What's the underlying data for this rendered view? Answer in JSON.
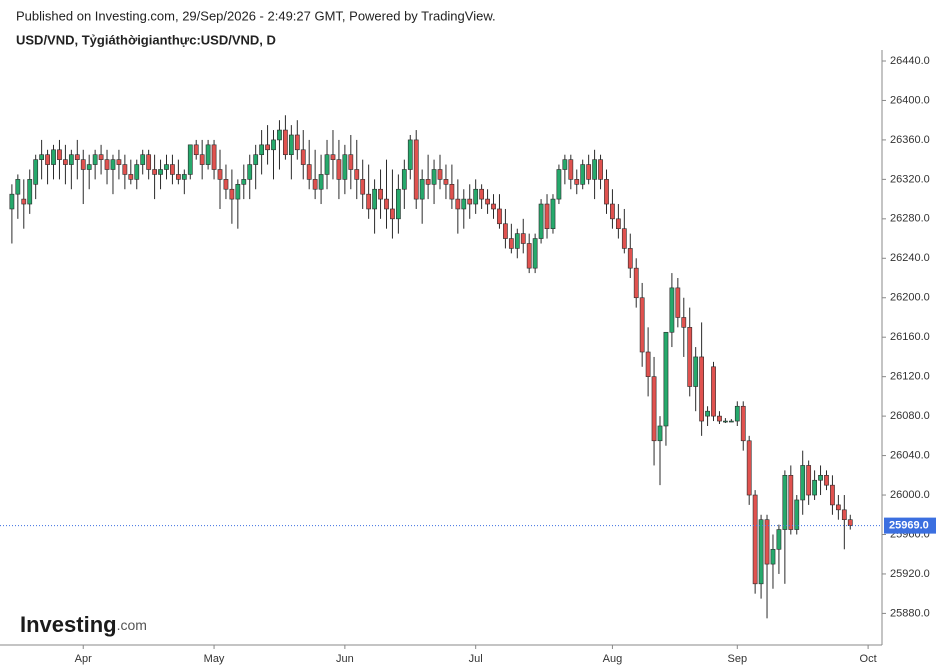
{
  "header": {
    "published": "Published on Investing.com, 29/Sep/2026 - 2:49:27 GMT, Powered by TradingView.",
    "symbol": "USD/VND, Tỷgiáthờigianthực:USD/VND, D"
  },
  "logo": {
    "main": "Investing",
    "suffix": ".com"
  },
  "chart_data": {
    "type": "candlestick",
    "up_color": "#26a96c",
    "down_color": "#e0524f",
    "wick_color": "#2a2a2a",
    "xlim": [
      -2,
      146
    ],
    "xticks": [
      {
        "value": 12,
        "label": "Apr"
      },
      {
        "value": 34,
        "label": "May"
      },
      {
        "value": 56,
        "label": "Jun"
      },
      {
        "value": 78,
        "label": "Jul"
      },
      {
        "value": 101,
        "label": "Aug"
      },
      {
        "value": 122,
        "label": "Sep"
      },
      {
        "value": 144,
        "label": "Oct"
      }
    ],
    "ylim": [
      25850,
      26440
    ],
    "yticks": [
      {
        "value": 25880,
        "label": "25880.0"
      },
      {
        "value": 25920,
        "label": "25920.0"
      },
      {
        "value": 25960,
        "label": "25960.0"
      },
      {
        "value": 26000,
        "label": "26000.0"
      },
      {
        "value": 26040,
        "label": "26040.0"
      },
      {
        "value": 26080,
        "label": "26080.0"
      },
      {
        "value": 26120,
        "label": "26120.0"
      },
      {
        "value": 26160,
        "label": "26160.0"
      },
      {
        "value": 26200,
        "label": "26200.0"
      },
      {
        "value": 26240,
        "label": "26240.0"
      },
      {
        "value": 26280,
        "label": "26280.0"
      },
      {
        "value": 26320,
        "label": "26320.0"
      },
      {
        "value": 26360,
        "label": "26360.0"
      },
      {
        "value": 26400,
        "label": "26400.0"
      },
      {
        "value": 26440,
        "label": "26440.0"
      }
    ],
    "last_price": {
      "value": 25969,
      "label": "25969.0",
      "color": "#3b6fe0"
    },
    "ohlc": [
      [
        26290,
        26315,
        26255,
        26305
      ],
      [
        26305,
        26325,
        26280,
        26320
      ],
      [
        26300,
        26320,
        26270,
        26295
      ],
      [
        26295,
        26330,
        26285,
        26320
      ],
      [
        26315,
        26345,
        26300,
        26340
      ],
      [
        26340,
        26360,
        26320,
        26345
      ],
      [
        26345,
        26350,
        26315,
        26335
      ],
      [
        26335,
        26355,
        26320,
        26350
      ],
      [
        26350,
        26360,
        26320,
        26340
      ],
      [
        26340,
        26355,
        26315,
        26335
      ],
      [
        26335,
        26350,
        26310,
        26345
      ],
      [
        26345,
        26360,
        26320,
        26340
      ],
      [
        26340,
        26350,
        26295,
        26330
      ],
      [
        26330,
        26345,
        26310,
        26335
      ],
      [
        26335,
        26350,
        26320,
        26345
      ],
      [
        26345,
        26355,
        26325,
        26340
      ],
      [
        26340,
        26350,
        26315,
        26330
      ],
      [
        26330,
        26345,
        26305,
        26340
      ],
      [
        26340,
        26350,
        26320,
        26335
      ],
      [
        26335,
        26345,
        26310,
        26325
      ],
      [
        26325,
        26340,
        26315,
        26320
      ],
      [
        26320,
        26340,
        26310,
        26335
      ],
      [
        26335,
        26350,
        26325,
        26345
      ],
      [
        26345,
        26350,
        26320,
        26330
      ],
      [
        26330,
        26345,
        26300,
        26325
      ],
      [
        26325,
        26340,
        26310,
        26330
      ],
      [
        26330,
        26345,
        26320,
        26335
      ],
      [
        26335,
        26345,
        26315,
        26325
      ],
      [
        26325,
        26340,
        26315,
        26320
      ],
      [
        26320,
        26330,
        26305,
        26325
      ],
      [
        26325,
        26355,
        26320,
        26355
      ],
      [
        26355,
        26360,
        26340,
        26345
      ],
      [
        26345,
        26360,
        26320,
        26335
      ],
      [
        26335,
        26360,
        26330,
        26355
      ],
      [
        26355,
        26360,
        26320,
        26330
      ],
      [
        26330,
        26350,
        26290,
        26320
      ],
      [
        26320,
        26335,
        26300,
        26310
      ],
      [
        26310,
        26330,
        26275,
        26300
      ],
      [
        26300,
        26320,
        26270,
        26315
      ],
      [
        26315,
        26335,
        26300,
        26320
      ],
      [
        26320,
        26345,
        26300,
        26335
      ],
      [
        26335,
        26355,
        26310,
        26345
      ],
      [
        26345,
        26370,
        26325,
        26355
      ],
      [
        26355,
        26375,
        26335,
        26350
      ],
      [
        26350,
        26370,
        26320,
        26360
      ],
      [
        26360,
        26380,
        26330,
        26370
      ],
      [
        26370,
        26385,
        26340,
        26345
      ],
      [
        26345,
        26375,
        26320,
        26365
      ],
      [
        26365,
        26380,
        26340,
        26350
      ],
      [
        26350,
        26370,
        26320,
        26335
      ],
      [
        26335,
        26360,
        26310,
        26320
      ],
      [
        26320,
        26350,
        26300,
        26310
      ],
      [
        26310,
        26345,
        26295,
        26325
      ],
      [
        26325,
        26360,
        26310,
        26345
      ],
      [
        26345,
        26370,
        26320,
        26340
      ],
      [
        26340,
        26360,
        26300,
        26320
      ],
      [
        26320,
        26355,
        26305,
        26345
      ],
      [
        26345,
        26365,
        26310,
        26330
      ],
      [
        26330,
        26360,
        26300,
        26320
      ],
      [
        26320,
        26340,
        26290,
        26305
      ],
      [
        26305,
        26335,
        26280,
        26290
      ],
      [
        26290,
        26320,
        26265,
        26310
      ],
      [
        26310,
        26330,
        26280,
        26300
      ],
      [
        26300,
        26340,
        26270,
        26290
      ],
      [
        26290,
        26330,
        26260,
        26280
      ],
      [
        26280,
        26325,
        26265,
        26310
      ],
      [
        26310,
        26340,
        26290,
        26330
      ],
      [
        26330,
        26365,
        26320,
        26360
      ],
      [
        26360,
        26370,
        26290,
        26300
      ],
      [
        26300,
        26330,
        26275,
        26320
      ],
      [
        26320,
        26345,
        26300,
        26315
      ],
      [
        26315,
        26340,
        26295,
        26330
      ],
      [
        26330,
        26345,
        26310,
        26320
      ],
      [
        26320,
        26335,
        26300,
        26315
      ],
      [
        26315,
        26335,
        26290,
        26300
      ],
      [
        26300,
        26320,
        26265,
        26290
      ],
      [
        26290,
        26310,
        26270,
        26300
      ],
      [
        26300,
        26315,
        26280,
        26295
      ],
      [
        26295,
        26320,
        26285,
        26310
      ],
      [
        26310,
        26315,
        26290,
        26300
      ],
      [
        26300,
        26310,
        26285,
        26295
      ],
      [
        26295,
        26305,
        26280,
        26290
      ],
      [
        26290,
        26305,
        26270,
        26275
      ],
      [
        26275,
        26290,
        26250,
        26260
      ],
      [
        26260,
        26275,
        26245,
        26250
      ],
      [
        26250,
        26270,
        26240,
        26265
      ],
      [
        26265,
        26280,
        26245,
        26255
      ],
      [
        26255,
        26265,
        26225,
        26230
      ],
      [
        26230,
        26265,
        26225,
        26260
      ],
      [
        26260,
        26300,
        26255,
        26295
      ],
      [
        26295,
        26305,
        26260,
        26270
      ],
      [
        26270,
        26305,
        26265,
        26300
      ],
      [
        26300,
        26335,
        26295,
        26330
      ],
      [
        26330,
        26345,
        26315,
        26340
      ],
      [
        26340,
        26345,
        26310,
        26320
      ],
      [
        26320,
        26330,
        26305,
        26315
      ],
      [
        26315,
        26340,
        26310,
        26335
      ],
      [
        26335,
        26345,
        26315,
        26320
      ],
      [
        26320,
        26350,
        26300,
        26340
      ],
      [
        26340,
        26345,
        26310,
        26320
      ],
      [
        26320,
        26330,
        26285,
        26295
      ],
      [
        26295,
        26310,
        26270,
        26280
      ],
      [
        26280,
        26295,
        26260,
        26270
      ],
      [
        26270,
        26290,
        26245,
        26250
      ],
      [
        26250,
        26265,
        26220,
        26230
      ],
      [
        26230,
        26240,
        26190,
        26200
      ],
      [
        26200,
        26215,
        26130,
        26145
      ],
      [
        26145,
        26170,
        26100,
        26120
      ],
      [
        26120,
        26140,
        26030,
        26055
      ],
      [
        26055,
        26080,
        26010,
        26070
      ],
      [
        26070,
        26165,
        26050,
        26165
      ],
      [
        26165,
        26225,
        26150,
        26210
      ],
      [
        26210,
        26220,
        26170,
        26180
      ],
      [
        26180,
        26200,
        26140,
        26170
      ],
      [
        26170,
        26190,
        26100,
        26110
      ],
      [
        26110,
        26150,
        26085,
        26140
      ],
      [
        26140,
        26175,
        26060,
        26075
      ],
      [
        26080,
        26090,
        26070,
        26085
      ],
      [
        26130,
        26135,
        26075,
        26080
      ],
      [
        26080,
        26085,
        26072,
        26075
      ],
      [
        26075,
        26078,
        26073,
        26075
      ],
      [
        26075,
        26077,
        26074,
        26075
      ],
      [
        26075,
        26095,
        26070,
        26090
      ],
      [
        26090,
        26095,
        26045,
        26055
      ],
      [
        26055,
        26060,
        25990,
        26000
      ],
      [
        26000,
        26005,
        25900,
        25910
      ],
      [
        25910,
        25980,
        25895,
        25975
      ],
      [
        25975,
        25980,
        25875,
        25930
      ],
      [
        25930,
        25960,
        25905,
        25945
      ],
      [
        25945,
        25970,
        25920,
        25965
      ],
      [
        25965,
        26025,
        25910,
        26020
      ],
      [
        26020,
        26030,
        25960,
        25965
      ],
      [
        25965,
        26000,
        25960,
        25995
      ],
      [
        25995,
        26045,
        25980,
        26030
      ],
      [
        26030,
        26035,
        25990,
        26000
      ],
      [
        26000,
        26025,
        25995,
        26015
      ],
      [
        26015,
        26030,
        26000,
        26020
      ],
      [
        26020,
        26025,
        26005,
        26010
      ],
      [
        26010,
        26020,
        25980,
        25990
      ],
      [
        25990,
        26000,
        25975,
        25985
      ],
      [
        25985,
        26000,
        25945,
        25975
      ],
      [
        25975,
        25980,
        25965,
        25969
      ]
    ]
  }
}
